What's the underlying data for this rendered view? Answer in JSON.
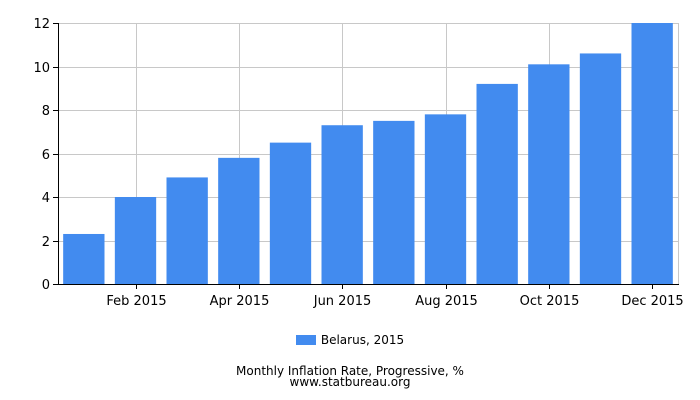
{
  "chart_data": {
    "type": "bar",
    "categories": [
      "Jan 2015",
      "Feb 2015",
      "Mar 2015",
      "Apr 2015",
      "May 2015",
      "Jun 2015",
      "Jul 2015",
      "Aug 2015",
      "Sep 2015",
      "Oct 2015",
      "Nov 2015",
      "Dec 2015"
    ],
    "tick_labels": [
      "",
      "Feb 2015",
      "",
      "Apr 2015",
      "",
      "Jun 2015",
      "",
      "Aug 2015",
      "",
      "Oct 2015",
      "",
      "Dec 2015"
    ],
    "series": [
      {
        "name": "Belarus, 2015",
        "values": [
          2.3,
          4.0,
          4.9,
          5.8,
          6.5,
          7.3,
          7.5,
          7.8,
          9.2,
          10.1,
          10.6,
          12.0
        ]
      }
    ],
    "ylim": [
      0,
      12
    ],
    "yticks": [
      0,
      2,
      4,
      6,
      8,
      10,
      12
    ],
    "grid": true,
    "legend_position": "bottom",
    "bar_color": "#428bef",
    "grid_color": "#c8c8c8",
    "axis_color": "#000000"
  },
  "caption": {
    "title": "Monthly Inflation Rate, Progressive, %",
    "source": "www.statbureau.org"
  }
}
